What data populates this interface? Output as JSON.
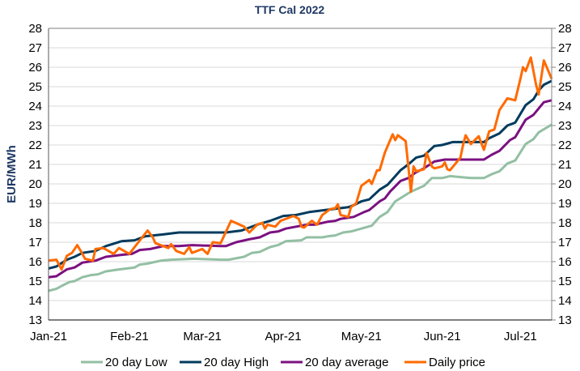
{
  "chart_data": {
    "type": "line",
    "title": "TTF Cal 2022",
    "xlabel": "",
    "ylabel": "EUR/MWh",
    "ylim": [
      13,
      28
    ],
    "yticks": [
      "13",
      "14",
      "15",
      "16",
      "17",
      "18",
      "19",
      "20",
      "21",
      "22",
      "23",
      "24",
      "25",
      "26",
      "27",
      "28"
    ],
    "secondary_yaxis": true,
    "xlim": [
      "2021-01-01",
      "2021-07-13"
    ],
    "xticks": [
      {
        "date": "2021-01-01",
        "label": "Jan-21"
      },
      {
        "date": "2021-02-01",
        "label": "Feb-21"
      },
      {
        "date": "2021-03-01",
        "label": "Mar-21"
      },
      {
        "date": "2021-04-01",
        "label": "Apr-21"
      },
      {
        "date": "2021-05-01",
        "label": "May-21"
      },
      {
        "date": "2021-06-01",
        "label": "Jun-21"
      },
      {
        "date": "2021-07-01",
        "label": "Jul-21"
      }
    ],
    "grid": "horizontal",
    "legend": "bottom",
    "series": [
      {
        "name": "20 day Low",
        "color": "#93bfa3",
        "points": [
          [
            "2021-01-01",
            14.5
          ],
          [
            "2021-01-04",
            14.6
          ],
          [
            "2021-01-06",
            14.75
          ],
          [
            "2021-01-09",
            14.95
          ],
          [
            "2021-01-11",
            15.0
          ],
          [
            "2021-01-14",
            15.2
          ],
          [
            "2021-01-17",
            15.3
          ],
          [
            "2021-01-20",
            15.35
          ],
          [
            "2021-01-23",
            15.5
          ],
          [
            "2021-01-28",
            15.6
          ],
          [
            "2021-02-03",
            15.7
          ],
          [
            "2021-02-05",
            15.85
          ],
          [
            "2021-02-08",
            15.9
          ],
          [
            "2021-02-13",
            16.05
          ],
          [
            "2021-02-17",
            16.1
          ],
          [
            "2021-02-26",
            16.15
          ],
          [
            "2021-03-08",
            16.1
          ],
          [
            "2021-03-11",
            16.1
          ],
          [
            "2021-03-17",
            16.25
          ],
          [
            "2021-03-20",
            16.45
          ],
          [
            "2021-03-23",
            16.5
          ],
          [
            "2021-03-27",
            16.75
          ],
          [
            "2021-03-30",
            16.85
          ],
          [
            "2021-04-02",
            17.05
          ],
          [
            "2021-04-08",
            17.1
          ],
          [
            "2021-04-10",
            17.25
          ],
          [
            "2021-04-16",
            17.25
          ],
          [
            "2021-04-18",
            17.3
          ],
          [
            "2021-04-21",
            17.35
          ],
          [
            "2021-04-24",
            17.5
          ],
          [
            "2021-04-27",
            17.55
          ],
          [
            "2021-05-01",
            17.7
          ],
          [
            "2021-05-05",
            17.85
          ],
          [
            "2021-05-08",
            18.3
          ],
          [
            "2021-05-11",
            18.55
          ],
          [
            "2021-05-14",
            19.1
          ],
          [
            "2021-05-17",
            19.35
          ],
          [
            "2021-05-20",
            19.6
          ],
          [
            "2021-05-25",
            19.9
          ],
          [
            "2021-05-28",
            20.3
          ],
          [
            "2021-06-01",
            20.3
          ],
          [
            "2021-06-04",
            20.4
          ],
          [
            "2021-06-08",
            20.35
          ],
          [
            "2021-06-12",
            20.3
          ],
          [
            "2021-06-17",
            20.3
          ],
          [
            "2021-06-20",
            20.5
          ],
          [
            "2021-06-23",
            20.65
          ],
          [
            "2021-06-26",
            21.05
          ],
          [
            "2021-06-29",
            21.2
          ],
          [
            "2021-07-03",
            22.05
          ],
          [
            "2021-07-06",
            22.3
          ],
          [
            "2021-07-08",
            22.65
          ],
          [
            "2021-07-13",
            23.05
          ]
        ]
      },
      {
        "name": "20 day High",
        "color": "#003a5d",
        "points": [
          [
            "2021-01-01",
            15.65
          ],
          [
            "2021-01-04",
            15.75
          ],
          [
            "2021-01-08",
            16.1
          ],
          [
            "2021-01-11",
            16.25
          ],
          [
            "2021-01-14",
            16.45
          ],
          [
            "2021-01-19",
            16.55
          ],
          [
            "2021-01-23",
            16.8
          ],
          [
            "2021-01-29",
            17.05
          ],
          [
            "2021-02-03",
            17.1
          ],
          [
            "2021-02-07",
            17.3
          ],
          [
            "2021-02-14",
            17.4
          ],
          [
            "2021-02-20",
            17.5
          ],
          [
            "2021-03-08",
            17.5
          ],
          [
            "2021-03-10",
            17.5
          ],
          [
            "2021-03-16",
            17.6
          ],
          [
            "2021-03-22",
            17.9
          ],
          [
            "2021-03-27",
            18.1
          ],
          [
            "2021-04-01",
            18.35
          ],
          [
            "2021-04-06",
            18.4
          ],
          [
            "2021-04-11",
            18.55
          ],
          [
            "2021-04-26",
            18.8
          ],
          [
            "2021-04-28",
            18.9
          ],
          [
            "2021-05-01",
            19.1
          ],
          [
            "2021-05-04",
            19.2
          ],
          [
            "2021-05-08",
            19.7
          ],
          [
            "2021-05-11",
            19.95
          ],
          [
            "2021-05-16",
            20.7
          ],
          [
            "2021-05-19",
            21.0
          ],
          [
            "2021-05-22",
            21.35
          ],
          [
            "2021-05-25",
            21.45
          ],
          [
            "2021-05-29",
            21.95
          ],
          [
            "2021-06-01",
            22.0
          ],
          [
            "2021-06-05",
            22.15
          ],
          [
            "2021-06-17",
            22.15
          ],
          [
            "2021-06-19",
            22.35
          ],
          [
            "2021-06-23",
            22.6
          ],
          [
            "2021-06-26",
            23.0
          ],
          [
            "2021-06-29",
            23.15
          ],
          [
            "2021-07-03",
            24.05
          ],
          [
            "2021-07-06",
            24.35
          ],
          [
            "2021-07-08",
            24.8
          ],
          [
            "2021-07-10",
            25.1
          ],
          [
            "2021-07-13",
            25.3
          ]
        ]
      },
      {
        "name": "20 day average",
        "color": "#7b1080",
        "points": [
          [
            "2021-01-01",
            15.2
          ],
          [
            "2021-01-04",
            15.25
          ],
          [
            "2021-01-08",
            15.6
          ],
          [
            "2021-01-11",
            15.7
          ],
          [
            "2021-01-14",
            15.95
          ],
          [
            "2021-01-19",
            16.05
          ],
          [
            "2021-01-23",
            16.25
          ],
          [
            "2021-01-29",
            16.35
          ],
          [
            "2021-02-02",
            16.4
          ],
          [
            "2021-02-05",
            16.6
          ],
          [
            "2021-02-09",
            16.65
          ],
          [
            "2021-02-14",
            16.8
          ],
          [
            "2021-02-20",
            16.8
          ],
          [
            "2021-02-25",
            16.85
          ],
          [
            "2021-03-08",
            16.8
          ],
          [
            "2021-03-10",
            16.8
          ],
          [
            "2021-03-14",
            17.0
          ],
          [
            "2021-03-19",
            17.15
          ],
          [
            "2021-03-23",
            17.25
          ],
          [
            "2021-03-27",
            17.5
          ],
          [
            "2021-03-30",
            17.55
          ],
          [
            "2021-04-02",
            17.7
          ],
          [
            "2021-04-10",
            17.9
          ],
          [
            "2021-04-13",
            17.9
          ],
          [
            "2021-04-18",
            18.05
          ],
          [
            "2021-04-21",
            18.1
          ],
          [
            "2021-04-23",
            18.2
          ],
          [
            "2021-04-28",
            18.3
          ],
          [
            "2021-05-02",
            18.55
          ],
          [
            "2021-05-04",
            18.65
          ],
          [
            "2021-05-08",
            19.1
          ],
          [
            "2021-05-10",
            19.25
          ],
          [
            "2021-05-12",
            19.6
          ],
          [
            "2021-05-16",
            20.15
          ],
          [
            "2021-05-19",
            20.3
          ],
          [
            "2021-05-22",
            20.6
          ],
          [
            "2021-05-25",
            20.8
          ],
          [
            "2021-05-29",
            21.15
          ],
          [
            "2021-06-02",
            21.25
          ],
          [
            "2021-06-08",
            21.25
          ],
          [
            "2021-06-17",
            21.25
          ],
          [
            "2021-06-20",
            21.5
          ],
          [
            "2021-06-23",
            21.7
          ],
          [
            "2021-06-27",
            22.25
          ],
          [
            "2021-06-29",
            22.4
          ],
          [
            "2021-07-03",
            23.3
          ],
          [
            "2021-07-06",
            23.55
          ],
          [
            "2021-07-10",
            24.2
          ],
          [
            "2021-07-13",
            24.3
          ]
        ]
      },
      {
        "name": "Daily price",
        "color": "#ff6a00",
        "points": [
          [
            "2021-01-01",
            16.05
          ],
          [
            "2021-01-04",
            16.1
          ],
          [
            "2021-01-06",
            15.6
          ],
          [
            "2021-01-08",
            16.3
          ],
          [
            "2021-01-10",
            16.45
          ],
          [
            "2021-01-12",
            16.85
          ],
          [
            "2021-01-14",
            16.4
          ],
          [
            "2021-01-15",
            16.15
          ],
          [
            "2021-01-18",
            16.05
          ],
          [
            "2021-01-19",
            16.65
          ],
          [
            "2021-01-22",
            16.7
          ],
          [
            "2021-01-26",
            16.4
          ],
          [
            "2021-01-28",
            16.7
          ],
          [
            "2021-02-01",
            16.4
          ],
          [
            "2021-02-03",
            16.75
          ],
          [
            "2021-02-08",
            17.6
          ],
          [
            "2021-02-10",
            17.25
          ],
          [
            "2021-02-11",
            16.95
          ],
          [
            "2021-02-16",
            16.7
          ],
          [
            "2021-02-17",
            16.9
          ],
          [
            "2021-02-19",
            16.55
          ],
          [
            "2021-02-22",
            16.4
          ],
          [
            "2021-02-24",
            16.75
          ],
          [
            "2021-02-25",
            16.45
          ],
          [
            "2021-03-01",
            16.65
          ],
          [
            "2021-03-03",
            16.4
          ],
          [
            "2021-03-05",
            17.0
          ],
          [
            "2021-03-08",
            16.95
          ],
          [
            "2021-03-12",
            18.1
          ],
          [
            "2021-03-17",
            17.8
          ],
          [
            "2021-03-19",
            17.5
          ],
          [
            "2021-03-22",
            17.9
          ],
          [
            "2021-03-24",
            18.0
          ],
          [
            "2021-03-25",
            17.7
          ],
          [
            "2021-03-26",
            17.9
          ],
          [
            "2021-03-29",
            17.8
          ],
          [
            "2021-03-31",
            18.1
          ],
          [
            "2021-04-05",
            18.35
          ],
          [
            "2021-04-07",
            18.2
          ],
          [
            "2021-04-08",
            17.8
          ],
          [
            "2021-04-09",
            17.75
          ],
          [
            "2021-04-12",
            18.1
          ],
          [
            "2021-04-14",
            17.9
          ],
          [
            "2021-04-16",
            18.4
          ],
          [
            "2021-04-19",
            18.7
          ],
          [
            "2021-04-21",
            18.75
          ],
          [
            "2021-04-22",
            18.95
          ],
          [
            "2021-04-23",
            18.4
          ],
          [
            "2021-04-26",
            18.3
          ],
          [
            "2021-04-27",
            18.8
          ],
          [
            "2021-04-29",
            19.0
          ],
          [
            "2021-05-01",
            19.9
          ],
          [
            "2021-05-04",
            20.2
          ],
          [
            "2021-05-05",
            20.0
          ],
          [
            "2021-05-07",
            20.7
          ],
          [
            "2021-05-08",
            20.7
          ],
          [
            "2021-05-10",
            21.6
          ],
          [
            "2021-05-13",
            22.55
          ],
          [
            "2021-05-14",
            22.25
          ],
          [
            "2021-05-15",
            22.5
          ],
          [
            "2021-05-18",
            22.2
          ],
          [
            "2021-05-20",
            19.6
          ],
          [
            "2021-05-21",
            20.9
          ],
          [
            "2021-05-22",
            20.65
          ],
          [
            "2021-05-25",
            20.75
          ],
          [
            "2021-05-26",
            21.6
          ],
          [
            "2021-05-28",
            20.9
          ],
          [
            "2021-05-29",
            20.8
          ],
          [
            "2021-06-01",
            20.9
          ],
          [
            "2021-06-02",
            21.1
          ],
          [
            "2021-06-03",
            20.75
          ],
          [
            "2021-06-04",
            20.7
          ],
          [
            "2021-06-08",
            21.35
          ],
          [
            "2021-06-09",
            22.0
          ],
          [
            "2021-06-10",
            22.5
          ],
          [
            "2021-06-12",
            22.05
          ],
          [
            "2021-06-15",
            22.45
          ],
          [
            "2021-06-17",
            21.75
          ],
          [
            "2021-06-19",
            22.7
          ],
          [
            "2021-06-21",
            22.8
          ],
          [
            "2021-06-23",
            23.8
          ],
          [
            "2021-06-26",
            24.4
          ],
          [
            "2021-06-29",
            24.3
          ],
          [
            "2021-07-01",
            25.4
          ],
          [
            "2021-07-02",
            26.0
          ],
          [
            "2021-07-03",
            25.8
          ],
          [
            "2021-07-05",
            26.5
          ],
          [
            "2021-07-07",
            25.1
          ],
          [
            "2021-07-08",
            24.6
          ],
          [
            "2021-07-10",
            26.35
          ],
          [
            "2021-07-13",
            25.4
          ]
        ]
      }
    ]
  }
}
